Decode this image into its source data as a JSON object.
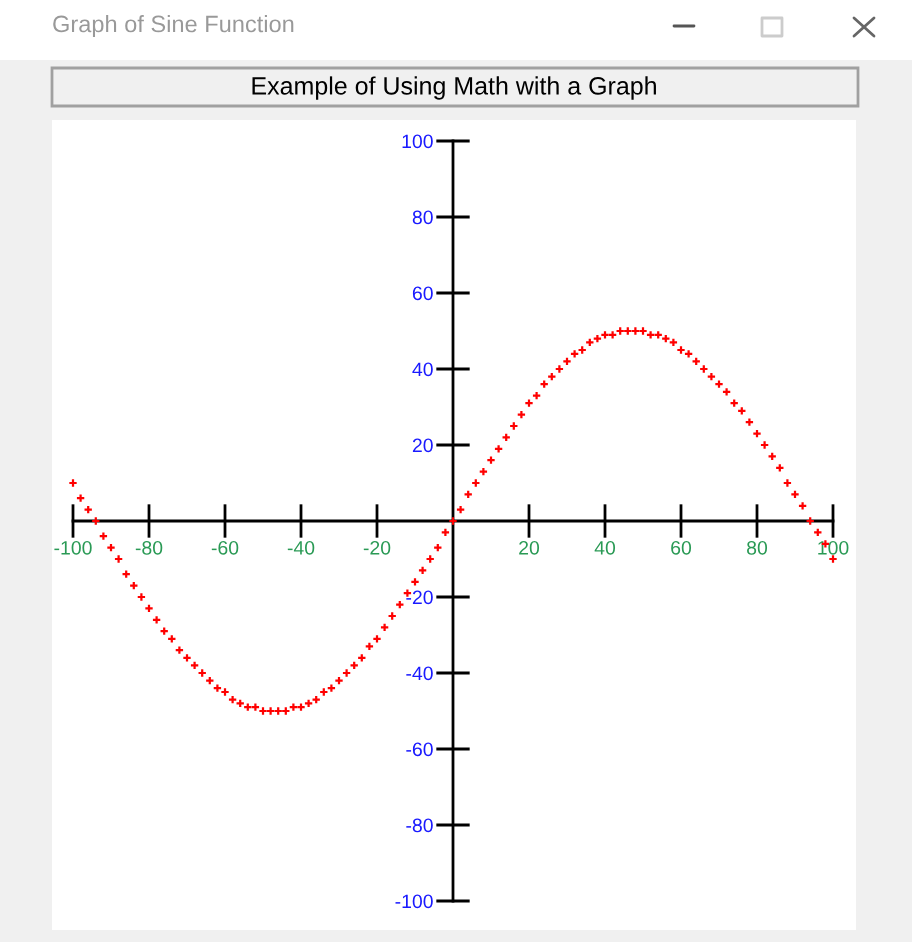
{
  "chart_data": {
    "type": "scatter",
    "title": "Example of Using Math with a Graph",
    "annotations": [
      "Graph of Sine Function"
    ],
    "x": [
      -100,
      -98,
      -96,
      -94,
      -92,
      -90,
      -88,
      -86,
      -84,
      -82,
      -80,
      -78,
      -76,
      -74,
      -72,
      -70,
      -68,
      -66,
      -64,
      -62,
      -60,
      -58,
      -56,
      -54,
      -52,
      -50,
      -48,
      -46,
      -44,
      -42,
      -40,
      -38,
      -36,
      -34,
      -32,
      -30,
      -28,
      -26,
      -24,
      -22,
      -20,
      -18,
      -16,
      -14,
      -12,
      -10,
      -8,
      -6,
      -4,
      -2,
      0,
      2,
      4,
      6,
      8,
      10,
      12,
      14,
      16,
      18,
      20,
      22,
      24,
      26,
      28,
      30,
      32,
      34,
      36,
      38,
      40,
      42,
      44,
      46,
      48,
      50,
      52,
      54,
      56,
      58,
      60,
      62,
      64,
      66,
      68,
      70,
      72,
      74,
      76,
      78,
      80,
      82,
      84,
      86,
      88,
      90,
      92,
      94,
      96,
      98,
      100
    ],
    "series": [
      {
        "color": "#ff0000",
        "values": [
          10,
          6,
          3,
          0,
          -4,
          -7,
          -10,
          -14,
          -17,
          -20,
          -23,
          -26,
          -29,
          -31,
          -34,
          -36,
          -38,
          -40,
          -42,
          -44,
          -45,
          -47,
          -48,
          -49,
          -49,
          -50,
          -50,
          -50,
          -50,
          -49,
          -49,
          -48,
          -47,
          -45,
          -44,
          -42,
          -40,
          -38,
          -36,
          -33,
          -31,
          -28,
          -25,
          -22,
          -19,
          -16,
          -13,
          -10,
          -7,
          -3,
          0,
          3,
          7,
          10,
          13,
          16,
          19,
          22,
          25,
          28,
          31,
          33,
          36,
          38,
          40,
          42,
          44,
          45,
          47,
          48,
          49,
          49,
          50,
          50,
          50,
          50,
          49,
          49,
          48,
          47,
          45,
          44,
          42,
          40,
          38,
          36,
          34,
          31,
          29,
          26,
          23,
          20,
          17,
          14,
          10,
          7,
          4,
          0,
          -3,
          -6,
          -10
        ]
      }
    ],
    "marker": "cross",
    "xlim": [
      -100,
      100
    ],
    "xticks": [
      -100,
      -80,
      -60,
      -40,
      -20,
      20,
      40,
      60,
      80,
      100
    ],
    "ylim": [
      -100,
      100
    ],
    "yticks": [
      100,
      80,
      60,
      40,
      20,
      -20,
      -40,
      -60,
      -80,
      -100
    ]
  }
}
